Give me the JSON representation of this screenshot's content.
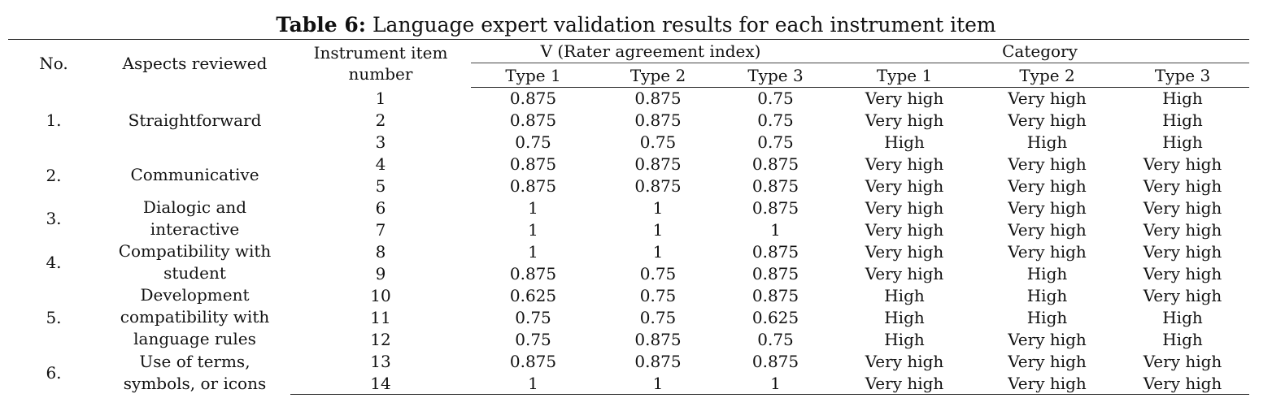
{
  "caption": {
    "label": "Table 6:",
    "text": "Language expert validation results for each instrument item"
  },
  "headers": {
    "no": "No.",
    "aspects": "Aspects reviewed",
    "instrument_line1": "Instrument item",
    "instrument_line2": "number",
    "v_group": "V (Rater agreement index)",
    "category_group": "Category",
    "types": [
      "Type 1",
      "Type 2",
      "Type 3"
    ]
  },
  "groups": [
    {
      "no": "1.",
      "aspect_lines": [
        "Straightforward"
      ],
      "rows": [
        {
          "item": "1",
          "v": [
            "0.875",
            "0.875",
            "0.75"
          ],
          "cat": [
            "Very high",
            "Very high",
            "High"
          ]
        },
        {
          "item": "2",
          "v": [
            "0.875",
            "0.875",
            "0.75"
          ],
          "cat": [
            "Very high",
            "Very high",
            "High"
          ]
        },
        {
          "item": "3",
          "v": [
            "0.75",
            "0.75",
            "0.75"
          ],
          "cat": [
            "High",
            "High",
            "High"
          ]
        }
      ]
    },
    {
      "no": "2.",
      "aspect_lines": [
        "Communicative"
      ],
      "rows": [
        {
          "item": "4",
          "v": [
            "0.875",
            "0.875",
            "0.875"
          ],
          "cat": [
            "Very high",
            "Very high",
            "Very high"
          ]
        },
        {
          "item": "5",
          "v": [
            "0.875",
            "0.875",
            "0.875"
          ],
          "cat": [
            "Very high",
            "Very high",
            "Very high"
          ]
        }
      ]
    },
    {
      "no": "3.",
      "aspect_lines": [
        "Dialogic and",
        "interactive"
      ],
      "rows": [
        {
          "item": "6",
          "v": [
            "1",
            "1",
            "0.875"
          ],
          "cat": [
            "Very high",
            "Very high",
            "Very high"
          ]
        },
        {
          "item": "7",
          "v": [
            "1",
            "1",
            "1"
          ],
          "cat": [
            "Very high",
            "Very high",
            "Very high"
          ]
        }
      ]
    },
    {
      "no": "4.",
      "aspect_lines": [
        "Compatibility with",
        "student"
      ],
      "rows": [
        {
          "item": "8",
          "v": [
            "1",
            "1",
            "0.875"
          ],
          "cat": [
            "Very high",
            "Very high",
            "Very high"
          ]
        },
        {
          "item": "9",
          "v": [
            "0.875",
            "0.75",
            "0.875"
          ],
          "cat": [
            "Very high",
            "High",
            "Very high"
          ]
        }
      ]
    },
    {
      "no": "5.",
      "aspect_lines": [
        "Development",
        "compatibility with",
        "language rules"
      ],
      "rows": [
        {
          "item": "10",
          "v": [
            "0.625",
            "0.75",
            "0.875"
          ],
          "cat": [
            "High",
            "High",
            "Very high"
          ]
        },
        {
          "item": "11",
          "v": [
            "0.75",
            "0.75",
            "0.625"
          ],
          "cat": [
            "High",
            "High",
            "High"
          ]
        },
        {
          "item": "12",
          "v": [
            "0.75",
            "0.875",
            "0.75"
          ],
          "cat": [
            "High",
            "Very high",
            "High"
          ]
        }
      ]
    },
    {
      "no": "6.",
      "aspect_lines": [
        "Use of terms,",
        "symbols, or icons"
      ],
      "rows": [
        {
          "item": "13",
          "v": [
            "0.875",
            "0.875",
            "0.875"
          ],
          "cat": [
            "Very high",
            "Very high",
            "Very high"
          ]
        },
        {
          "item": "14",
          "v": [
            "1",
            "1",
            "1"
          ],
          "cat": [
            "Very high",
            "Very high",
            "Very high"
          ]
        }
      ]
    }
  ]
}
